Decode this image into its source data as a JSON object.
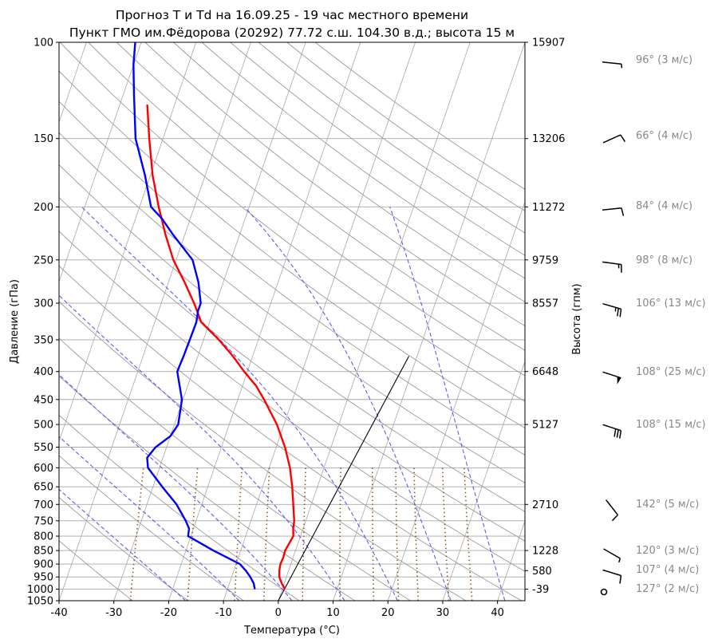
{
  "chart_data": {
    "type": "line",
    "title": "Прогноз T и Td на 16.09.25 - 19 час местного времени",
    "subtitle": "Пункт ГМО им.Фёдорова (20292) 77.72 с.ш. 104.30 в.д.; высота 15 м",
    "xlabel": "Температура (°C)",
    "ylabel": "Давление (гПа)",
    "ylabel_right": "Высота (гпм)",
    "xlim": [
      -40,
      45
    ],
    "ylim": [
      1050,
      100
    ],
    "yscale": "log",
    "grid": true,
    "x_ticks": [
      "-40",
      "-30",
      "-20",
      "-10",
      "0",
      "10",
      "20",
      "30",
      "40"
    ],
    "y_ticks": [
      "100",
      "150",
      "200",
      "250",
      "300",
      "350",
      "400",
      "450",
      "500",
      "550",
      "600",
      "650",
      "700",
      "750",
      "800",
      "850",
      "900",
      "950",
      "1000",
      "1050"
    ],
    "height_ticks": [
      {
        "p": 100,
        "label": "15907"
      },
      {
        "p": 150,
        "label": "13206"
      },
      {
        "p": 200,
        "label": "11272"
      },
      {
        "p": 250,
        "label": "9759"
      },
      {
        "p": 300,
        "label": "8557"
      },
      {
        "p": 400,
        "label": "6648"
      },
      {
        "p": 500,
        "label": "5127"
      },
      {
        "p": 700,
        "label": "2710"
      },
      {
        "p": 850,
        "label": "1228"
      },
      {
        "p": 925,
        "label": "580"
      },
      {
        "p": 1000,
        "label": "-39"
      }
    ],
    "series": [
      {
        "color": "#ff0000",
        "points": [
          [
            1000,
            0.5
          ],
          [
            975,
            -0.5
          ],
          [
            950,
            -1.3
          ],
          [
            925,
            -1.7
          ],
          [
            900,
            -1.9
          ],
          [
            875,
            -1.8
          ],
          [
            850,
            -1.9
          ],
          [
            825,
            -1.6
          ],
          [
            800,
            -1.3
          ],
          [
            775,
            -1.8
          ],
          [
            750,
            -2.1
          ],
          [
            700,
            -3.3
          ],
          [
            650,
            -4.6
          ],
          [
            600,
            -6.2
          ],
          [
            550,
            -8.4
          ],
          [
            500,
            -11.3
          ],
          [
            450,
            -15.2
          ],
          [
            425,
            -17.5
          ],
          [
            400,
            -20.6
          ],
          [
            375,
            -23.6
          ],
          [
            350,
            -27.2
          ],
          [
            325,
            -31.5
          ],
          [
            300,
            -34.0
          ],
          [
            275,
            -37.0
          ],
          [
            250,
            -40.5
          ],
          [
            225,
            -43.5
          ],
          [
            200,
            -46.5
          ],
          [
            175,
            -49.6
          ],
          [
            150,
            -52.5
          ],
          [
            140,
            -53.7
          ],
          [
            130,
            -55.0
          ]
        ]
      },
      {
        "color": "#0000ff",
        "points": [
          [
            1000,
            -5.0
          ],
          [
            975,
            -5.6
          ],
          [
            950,
            -6.6
          ],
          [
            925,
            -7.8
          ],
          [
            900,
            -9.3
          ],
          [
            875,
            -12.1
          ],
          [
            850,
            -15.0
          ],
          [
            825,
            -17.7
          ],
          [
            800,
            -20.5
          ],
          [
            775,
            -20.8
          ],
          [
            750,
            -21.9
          ],
          [
            700,
            -24.6
          ],
          [
            650,
            -28.3
          ],
          [
            600,
            -32.1
          ],
          [
            575,
            -32.9
          ],
          [
            550,
            -32.0
          ],
          [
            525,
            -30.0
          ],
          [
            500,
            -29.3
          ],
          [
            450,
            -30.2
          ],
          [
            400,
            -32.8
          ],
          [
            375,
            -32.6
          ],
          [
            350,
            -32.5
          ],
          [
            325,
            -32.4
          ],
          [
            310,
            -32.8
          ],
          [
            300,
            -32.8
          ],
          [
            275,
            -34.5
          ],
          [
            250,
            -37.0
          ],
          [
            225,
            -42.1
          ],
          [
            210,
            -45.2
          ],
          [
            200,
            -47.9
          ],
          [
            175,
            -51.0
          ],
          [
            150,
            -55.0
          ],
          [
            125,
            -58.0
          ],
          [
            110,
            -60.0
          ],
          [
            100,
            -61.1
          ]
        ]
      }
    ],
    "wind_annotations": [
      {
        "p": 100,
        "label": "96° (3 м/с)"
      },
      {
        "p": 150,
        "label": "66° (4 м/с)"
      },
      {
        "p": 200,
        "label": "84° (4 м/с)"
      },
      {
        "p": 250,
        "label": "98° (8 м/с)"
      },
      {
        "p": 300,
        "label": "106° (13 м/с)"
      },
      {
        "p": 400,
        "label": "108° (25 м/с)"
      },
      {
        "p": 500,
        "label": "108° (15 м/с)"
      },
      {
        "p": 700,
        "label": "142° (5 м/с)"
      },
      {
        "p": 850,
        "label": "120° (3 м/с)"
      },
      {
        "p": 925,
        "label": "107° (4 м/с)"
      },
      {
        "p": 1000,
        "label": "127° (2 м/с)"
      }
    ],
    "colors": {
      "temperature": "#ff0000",
      "dewpoint": "#0000ff",
      "isobars": "#a8a8a8",
      "dry_adiabats": "#9a9a9a",
      "moist_adiabats": "#5b5bff",
      "mixing_ratio": "#8b5a2b",
      "wind_labels": "#888888"
    }
  }
}
